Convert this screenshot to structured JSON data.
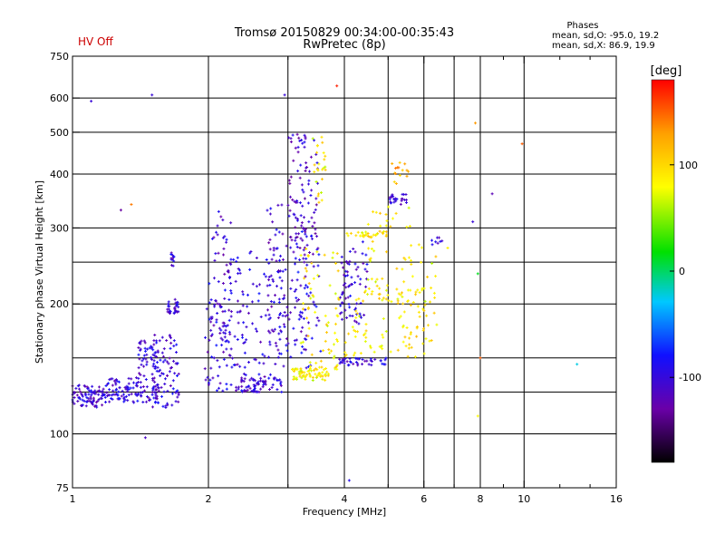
{
  "header": {
    "title": "Tromsø 20150829 00:34:00-00:35:43",
    "subtitle": "RwPretec (8p)",
    "status": "HV Off",
    "status_color": "#cc0000"
  },
  "stats": {
    "heading": "Phases",
    "line_o": "mean, sd,O: -95.0, 19.2",
    "line_x": "mean, sd,X: 86.9, 19.9"
  },
  "chart_data": {
    "type": "scatter",
    "title": "Tromsø 20150829 00:34:00-00:35:43",
    "subtitle": "RwPretec (8p)",
    "xlabel": "Frequency [MHz]",
    "ylabel": "Stationary phase Virtual Height [km]",
    "x_scale": "log",
    "y_scale": "log",
    "xlim": [
      1,
      16
    ],
    "ylim": [
      75,
      750
    ],
    "x_ticks": [
      {
        "value": 1,
        "label": "1"
      },
      {
        "value": 2,
        "label": "2"
      },
      {
        "value": 4,
        "label": "4"
      },
      {
        "value": 6,
        "label": "6"
      },
      {
        "value": 8,
        "label": "8"
      },
      {
        "value": 10,
        "label": "10"
      },
      {
        "value": 16,
        "label": "16"
      }
    ],
    "x_minor_ticks": [
      3,
      5,
      7,
      9,
      12,
      14
    ],
    "x_grid": [
      2,
      3,
      4,
      5,
      6,
      7,
      8,
      10
    ],
    "y_ticks": [
      {
        "value": 75,
        "label": "75"
      },
      {
        "value": 100,
        "label": "100"
      },
      {
        "value": 200,
        "label": "200"
      },
      {
        "value": 300,
        "label": "300"
      },
      {
        "value": 400,
        "label": "400"
      },
      {
        "value": 500,
        "label": "500"
      },
      {
        "value": 600,
        "label": "600"
      },
      {
        "value": 750,
        "label": "750"
      }
    ],
    "y_grid": [
      100,
      125,
      150,
      200,
      250,
      300,
      400,
      500,
      600
    ],
    "grid": true,
    "colorbar": {
      "label": "[deg]",
      "range": [
        -180,
        180
      ],
      "ticks": [
        {
          "value": 100,
          "label": "100"
        },
        {
          "value": 0,
          "label": "0"
        },
        {
          "value": -100,
          "label": "-100"
        }
      ],
      "colors": [
        "#000000",
        "#6a00a8",
        "#1010ff",
        "#00c8ff",
        "#00e000",
        "#ffff00",
        "#ffa000",
        "#ff0000"
      ]
    },
    "series": [
      {
        "kind": "cluster",
        "x": [
          1.0,
          1.18
        ],
        "y": [
          115,
          130
        ],
        "phase": -105,
        "count": 90
      },
      {
        "kind": "cluster",
        "x": [
          1.18,
          1.55
        ],
        "y": [
          118,
          135
        ],
        "phase": -100,
        "count": 110
      },
      {
        "kind": "cluster",
        "x": [
          1.4,
          1.55
        ],
        "y": [
          135,
          165
        ],
        "phase": -100,
        "count": 45
      },
      {
        "kind": "cluster",
        "x": [
          1.5,
          1.72
        ],
        "y": [
          115,
          170
        ],
        "phase": -100,
        "count": 90
      },
      {
        "kind": "cluster",
        "x": [
          1.62,
          1.72
        ],
        "y": [
          190,
          205
        ],
        "phase": -100,
        "count": 30
      },
      {
        "kind": "cluster",
        "x": [
          1.64,
          1.68
        ],
        "y": [
          245,
          265
        ],
        "phase": -100,
        "count": 12
      },
      {
        "kind": "cluster",
        "x": [
          1.96,
          2.2
        ],
        "y": [
          125,
          230
        ],
        "phase": -100,
        "count": 60
      },
      {
        "kind": "cluster",
        "x": [
          2.0,
          2.25
        ],
        "y": [
          170,
          330
        ],
        "phase": -105,
        "count": 50
      },
      {
        "kind": "cluster",
        "x": [
          2.2,
          3.0
        ],
        "y": [
          125,
          270
        ],
        "phase": -100,
        "count": 120
      },
      {
        "kind": "cluster",
        "x": [
          2.3,
          2.9
        ],
        "y": [
          125,
          135
        ],
        "phase": -100,
        "count": 70
      },
      {
        "kind": "cluster",
        "x": [
          2.7,
          3.3
        ],
        "y": [
          150,
          350
        ],
        "phase": -105,
        "count": 90
      },
      {
        "kind": "cluster",
        "x": [
          3.0,
          3.5
        ],
        "y": [
          250,
          500
        ],
        "phase": -110,
        "count": 90
      },
      {
        "kind": "cluster",
        "x": [
          3.1,
          3.55
        ],
        "y": [
          140,
          300
        ],
        "phase": -95,
        "count": 50
      },
      {
        "kind": "cluster",
        "x": [
          3.2,
          3.9
        ],
        "y": [
          140,
          270
        ],
        "phase": 90,
        "count": 70
      },
      {
        "kind": "cluster",
        "x": [
          3.4,
          3.65
        ],
        "y": [
          340,
          500
        ],
        "phase": 85,
        "count": 25
      },
      {
        "kind": "cluster",
        "x": [
          3.05,
          3.7
        ],
        "y": [
          133,
          142
        ],
        "phase": 85,
        "count": 60
      },
      {
        "kind": "cluster",
        "x": [
          3.9,
          4.5
        ],
        "y": [
          180,
          280
        ],
        "phase": -100,
        "count": 70
      },
      {
        "kind": "cluster",
        "x": [
          3.9,
          5.0
        ],
        "y": [
          144,
          150
        ],
        "phase": -100,
        "count": 40
      },
      {
        "kind": "cluster",
        "x": [
          4.0,
          5.3
        ],
        "y": [
          150,
          230
        ],
        "phase": 88,
        "count": 55
      },
      {
        "kind": "cluster",
        "x": [
          4.0,
          5.0
        ],
        "y": [
          285,
          295
        ],
        "phase": 90,
        "count": 30
      },
      {
        "kind": "cluster",
        "x": [
          4.5,
          5.6
        ],
        "y": [
          200,
          340
        ],
        "phase": 90,
        "count": 40
      },
      {
        "kind": "cluster",
        "x": [
          5.0,
          5.5
        ],
        "y": [
          340,
          360
        ],
        "phase": -100,
        "count": 25
      },
      {
        "kind": "cluster",
        "x": [
          5.1,
          5.6
        ],
        "y": [
          380,
          430
        ],
        "phase": 120,
        "count": 15
      },
      {
        "kind": "cluster",
        "x": [
          5.2,
          6.2
        ],
        "y": [
          150,
          220
        ],
        "phase": 90,
        "count": 45
      },
      {
        "kind": "cluster",
        "x": [
          5.3,
          6.8
        ],
        "y": [
          160,
          280
        ],
        "phase": 85,
        "count": 30
      },
      {
        "kind": "cluster",
        "x": [
          6.2,
          6.6
        ],
        "y": [
          270,
          285
        ],
        "phase": -100,
        "count": 8
      },
      {
        "kind": "point",
        "x": 1.5,
        "y": 610,
        "phase": -100
      },
      {
        "kind": "point",
        "x": 1.1,
        "y": 590,
        "phase": -100
      },
      {
        "kind": "point",
        "x": 2.95,
        "y": 610,
        "phase": -100
      },
      {
        "kind": "point",
        "x": 3.85,
        "y": 640,
        "phase": 170
      },
      {
        "kind": "point",
        "x": 7.8,
        "y": 525,
        "phase": 130
      },
      {
        "kind": "point",
        "x": 9.9,
        "y": 470,
        "phase": 150
      },
      {
        "kind": "point",
        "x": 8.5,
        "y": 360,
        "phase": -120
      },
      {
        "kind": "point",
        "x": 7.7,
        "y": 310,
        "phase": -100
      },
      {
        "kind": "point",
        "x": 7.9,
        "y": 235,
        "phase": 20
      },
      {
        "kind": "point",
        "x": 8.0,
        "y": 150,
        "phase": 150
      },
      {
        "kind": "point",
        "x": 7.9,
        "y": 110,
        "phase": 80
      },
      {
        "kind": "point",
        "x": 13.1,
        "y": 145,
        "phase": -20
      },
      {
        "kind": "point",
        "x": 4.1,
        "y": 78,
        "phase": -90
      },
      {
        "kind": "point",
        "x": 1.45,
        "y": 98,
        "phase": -110
      },
      {
        "kind": "point",
        "x": 1.35,
        "y": 340,
        "phase": 140
      },
      {
        "kind": "point",
        "x": 1.28,
        "y": 330,
        "phase": -130
      }
    ]
  }
}
